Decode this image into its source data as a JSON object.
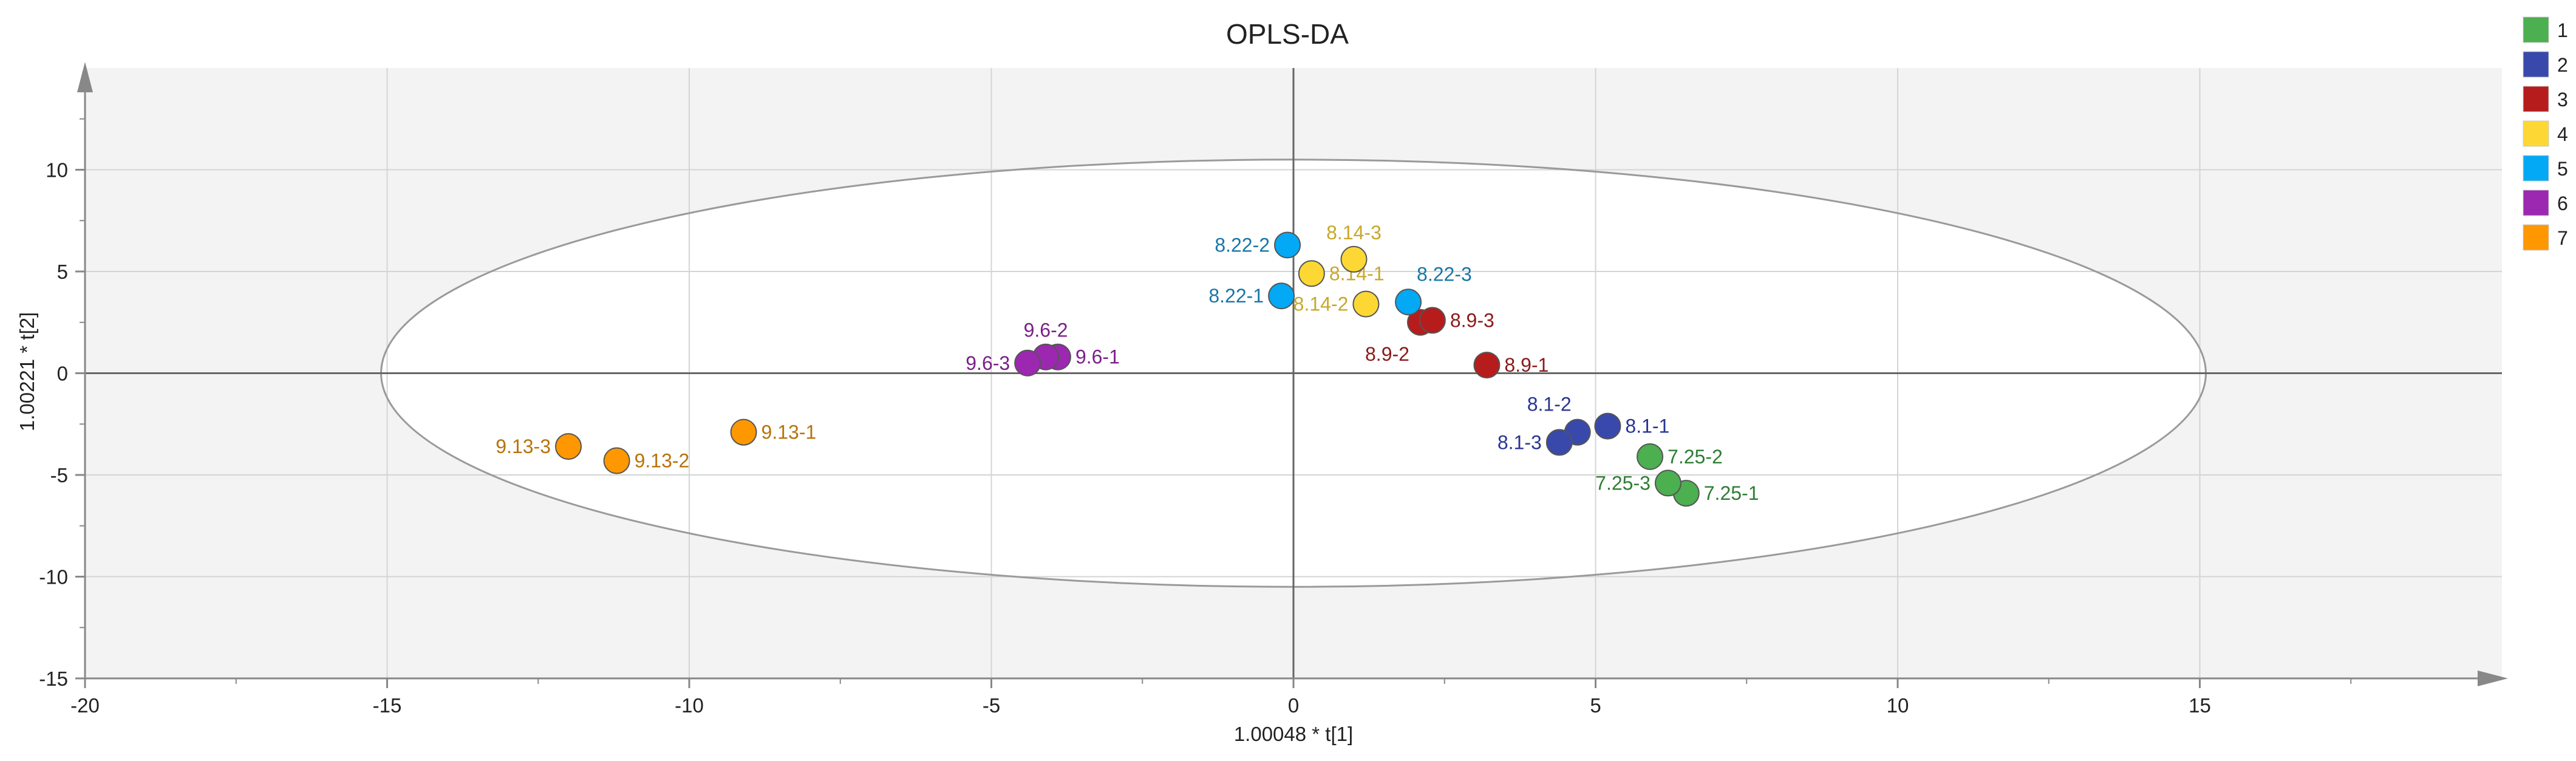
{
  "chart_data": {
    "type": "scatter",
    "title": "OPLS-DA",
    "xlabel": "1.00048 * t[1]",
    "ylabel": "1.00221 * t[2]",
    "xlim": [
      -20,
      20
    ],
    "ylim": [
      -15,
      15
    ],
    "x_ticks": [
      -20,
      -15,
      -10,
      -5,
      0,
      5,
      10,
      15
    ],
    "y_ticks": [
      -15,
      -10,
      -5,
      0,
      5,
      10
    ],
    "grid": true,
    "ellipse": {
      "center": [
        0,
        0
      ],
      "semi_x": 15.1,
      "semi_y": 10.5
    },
    "legend_position": "top-right",
    "series": [
      {
        "name": "1",
        "color": "#4caf50",
        "label_color": "#2e7d32",
        "points": [
          {
            "label": "7.25-1",
            "x": 6.5,
            "y": -5.9,
            "label_side": "right"
          },
          {
            "label": "7.25-2",
            "x": 5.9,
            "y": -4.1,
            "label_side": "right"
          },
          {
            "label": "7.25-3",
            "x": 6.2,
            "y": -5.4,
            "label_side": "left"
          }
        ]
      },
      {
        "name": "2",
        "color": "#3949ab",
        "label_color": "#283593",
        "points": [
          {
            "label": "8.1-1",
            "x": 5.2,
            "y": -2.6,
            "label_side": "right"
          },
          {
            "label": "8.1-2",
            "x": 4.7,
            "y": -2.9,
            "label_side": "above-left"
          },
          {
            "label": "8.1-3",
            "x": 4.4,
            "y": -3.4,
            "label_side": "left"
          }
        ]
      },
      {
        "name": "3",
        "color": "#b71c1c",
        "label_color": "#8b1a1a",
        "points": [
          {
            "label": "8.9-1",
            "x": 3.2,
            "y": 0.4,
            "label_side": "right"
          },
          {
            "label": "8.9-2",
            "x": 2.1,
            "y": 2.5,
            "label_side": "below-left"
          },
          {
            "label": "8.9-3",
            "x": 2.3,
            "y": 2.6,
            "label_side": "right"
          }
        ]
      },
      {
        "name": "4",
        "color": "#fdd835",
        "label_color": "#c8a82a",
        "points": [
          {
            "label": "8.14-1",
            "x": 0.3,
            "y": 4.9,
            "label_side": "right"
          },
          {
            "label": "8.14-2",
            "x": 1.2,
            "y": 3.4,
            "label_side": "left"
          },
          {
            "label": "8.14-3",
            "x": 1.0,
            "y": 5.6,
            "label_side": "above"
          }
        ]
      },
      {
        "name": "5",
        "color": "#03a9f4",
        "label_color": "#1976a8",
        "points": [
          {
            "label": "8.22-1",
            "x": -0.2,
            "y": 3.8,
            "label_side": "left"
          },
          {
            "label": "8.22-2",
            "x": -0.1,
            "y": 6.3,
            "label_side": "left"
          },
          {
            "label": "8.22-3",
            "x": 1.9,
            "y": 3.5,
            "label_side": "above-right"
          }
        ]
      },
      {
        "name": "6",
        "color": "#9c27b0",
        "label_color": "#7b1f8a",
        "points": [
          {
            "label": "9.6-1",
            "x": -3.9,
            "y": 0.8,
            "label_side": "right"
          },
          {
            "label": "9.6-2",
            "x": -4.1,
            "y": 0.8,
            "label_side": "above"
          },
          {
            "label": "9.6-3",
            "x": -4.4,
            "y": 0.5,
            "label_side": "left"
          }
        ]
      },
      {
        "name": "7",
        "color": "#ff9800",
        "label_color": "#b8730a",
        "points": [
          {
            "label": "9.13-1",
            "x": -9.1,
            "y": -2.9,
            "label_side": "right"
          },
          {
            "label": "9.13-2",
            "x": -11.2,
            "y": -4.3,
            "label_side": "right"
          },
          {
            "label": "9.13-3",
            "x": -12.0,
            "y": -3.6,
            "label_side": "left"
          }
        ]
      }
    ]
  }
}
